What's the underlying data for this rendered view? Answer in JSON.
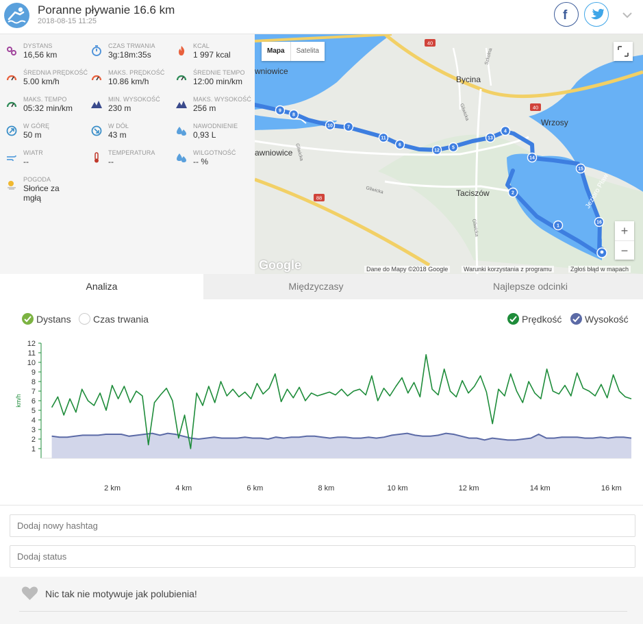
{
  "header": {
    "title": "Poranne pływanie 16.6 km",
    "date": "2018-08-15 11:25",
    "activity_icon": "swimmer-icon",
    "social": [
      "facebook-icon",
      "twitter-icon"
    ]
  },
  "stats": [
    {
      "label": "DYSTANS",
      "value": "16,56 km",
      "icon": "distance-icon",
      "color": "#a0449c"
    },
    {
      "label": "CZAS TRWANIA",
      "value": "3g:18m:35s",
      "icon": "stopwatch-icon",
      "color": "#4a90d9"
    },
    {
      "label": "KCAL",
      "value": "1 997 kcal",
      "icon": "flame-icon",
      "color": "#e8603c"
    },
    {
      "label": "ŚREDNIA PRĘDKOŚĆ",
      "value": "5.00 km/h",
      "icon": "speedometer-icon",
      "color": "#e8603c"
    },
    {
      "label": "MAKS. PRĘDKOŚĆ",
      "value": "10.86 km/h",
      "icon": "speedometer-icon",
      "color": "#e8603c"
    },
    {
      "label": "ŚREDNIE TEMPO",
      "value": "12:00 min/km",
      "icon": "pace-icon",
      "color": "#2e8b57"
    },
    {
      "label": "MAKS. TEMPO",
      "value": "05:32 min/km",
      "icon": "pace-icon",
      "color": "#2e8b57"
    },
    {
      "label": "MIN. WYSOKOŚĆ",
      "value": "230 m",
      "icon": "mountain-icon",
      "color": "#3a4a8c"
    },
    {
      "label": "MAKS. WYSOKOŚĆ",
      "value": "256 m",
      "icon": "mountain-icon",
      "color": "#3a4a8c"
    },
    {
      "label": "W GÓRĘ",
      "value": "50 m",
      "icon": "ascent-icon",
      "color": "#3a8ec8"
    },
    {
      "label": "W DÓŁ",
      "value": "43 m",
      "icon": "descent-icon",
      "color": "#3a8ec8"
    },
    {
      "label": "NAWODNIENIE",
      "value": "0,93 L",
      "icon": "drops-icon",
      "color": "#5aa0dc"
    },
    {
      "label": "WIATR",
      "value": "--",
      "icon": "wind-icon",
      "color": "#5aa0dc"
    },
    {
      "label": "TEMPERATURA",
      "value": "--",
      "icon": "thermometer-icon",
      "color": "#c0392b"
    },
    {
      "label": "WILGOTNOŚĆ",
      "value": "-- %",
      "icon": "humidity-icon",
      "color": "#5aa0dc"
    },
    {
      "label": "POGODA",
      "value": "Słońce za\nmgłą",
      "icon": "sun-fog-icon",
      "color": "#f0b830"
    }
  ],
  "map": {
    "btn_map": "Mapa",
    "btn_sat": "Satelita",
    "google": "Google",
    "attribution": "Dane do Mapy ©2018 Google",
    "terms": "Warunki korzystania z programu",
    "report": "Zgłoś błąd w mapach",
    "places": [
      {
        "name": "Bycina"
      },
      {
        "name": "Wrzosy"
      },
      {
        "name": "Taciszów"
      },
      {
        "name": "wniowice"
      },
      {
        "name": "awniowice"
      },
      {
        "name": "Gliwicka"
      },
      {
        "name": "Gliwicka"
      },
      {
        "name": "Gliwicka"
      },
      {
        "name": "Szkolna"
      },
      {
        "name": "Gliwicka"
      },
      {
        "name": "Jezioro Pław"
      }
    ],
    "roads": [
      "40",
      "40",
      "88"
    ],
    "markers": [
      "9",
      "8",
      "10",
      "7",
      "11",
      "6",
      "12",
      "5",
      "13",
      "4",
      "14",
      "15",
      "2",
      "16",
      "1"
    ]
  },
  "tabs": [
    "Analiza",
    "Międzyczasy",
    "Najlepsze odcinki"
  ],
  "legend": {
    "left": [
      {
        "label": "Dystans",
        "checked": true
      },
      {
        "label": "Czas trwania",
        "checked": false
      }
    ],
    "right": [
      {
        "label": "Prędkość",
        "color": "#1e8c3a",
        "checked": true
      },
      {
        "label": "Wysokość",
        "color": "#5b6aa6",
        "checked": true
      }
    ]
  },
  "chart_data": {
    "type": "line",
    "xlabel": "",
    "ylabel": "km/h",
    "xlim": [
      0,
      16.56
    ],
    "ylim": [
      0,
      12
    ],
    "xticks": [
      "2 km",
      "4 km",
      "6 km",
      "8 km",
      "10 km",
      "12 km",
      "14 km",
      "16 km"
    ],
    "yticks": [
      "1",
      "2",
      "3",
      "4",
      "5",
      "6",
      "7",
      "8",
      "9",
      "10",
      "11",
      "12"
    ],
    "series": [
      {
        "name": "Prędkość",
        "color": "#1e8c3a",
        "type": "line",
        "y": [
          5.3,
          6.4,
          4.5,
          6.2,
          4.8,
          7.2,
          6.0,
          5.5,
          6.8,
          5.0,
          7.6,
          6.2,
          7.5,
          5.8,
          7.0,
          6.5,
          1.4,
          5.8,
          6.6,
          7.3,
          6.0,
          2.1,
          4.5,
          1.0,
          6.8,
          5.5,
          7.5,
          5.8,
          8.0,
          6.5,
          7.2,
          6.4,
          6.9,
          6.2,
          7.8,
          6.7,
          7.3,
          8.8,
          5.9,
          7.2,
          6.3,
          7.4,
          6.0,
          6.8,
          6.5,
          6.7,
          6.9,
          6.6,
          7.2,
          6.5,
          7.0,
          7.2,
          6.6,
          8.6,
          6.0,
          7.3,
          6.5,
          7.5,
          8.4,
          6.8,
          7.9,
          6.4,
          10.8,
          7.2,
          6.6,
          9.3,
          7.0,
          6.4,
          8.1,
          6.8,
          7.5,
          8.6,
          6.9,
          3.6,
          7.2,
          6.5,
          8.8,
          7.0,
          5.8,
          8.0,
          6.8,
          6.2,
          9.3,
          7.0,
          6.7,
          7.6,
          6.5,
          8.9,
          7.3,
          7.0,
          6.5,
          7.7,
          6.3,
          8.7,
          7.0,
          6.4,
          6.2
        ]
      },
      {
        "name": "Wysokość",
        "color": "#5b6aa6",
        "type": "area",
        "y": [
          2.3,
          2.2,
          2.2,
          2.3,
          2.4,
          2.4,
          2.4,
          2.5,
          2.5,
          2.5,
          2.3,
          2.4,
          2.5,
          2.6,
          2.4,
          2.6,
          2.5,
          2.3,
          2.1,
          2.0,
          2.1,
          2.2,
          2.1,
          2.1,
          2.1,
          2.2,
          2.1,
          2.1,
          2.0,
          2.2,
          2.1,
          2.2,
          2.2,
          2.3,
          2.3,
          2.2,
          2.1,
          2.2,
          2.2,
          2.1,
          2.1,
          2.2,
          2.1,
          2.2,
          2.4,
          2.5,
          2.6,
          2.4,
          2.3,
          2.3,
          2.4,
          2.6,
          2.5,
          2.3,
          2.1,
          2.1,
          1.9,
          2.1,
          2.0,
          1.9,
          1.9,
          2.0,
          2.1,
          2.5,
          2.1,
          2.1,
          2.2,
          2.2,
          2.2,
          2.1,
          2.1,
          2.2,
          2.1,
          2.2,
          2.2,
          2.1
        ]
      }
    ]
  },
  "inputs": {
    "hashtag_placeholder": "Dodaj nowy hashtag",
    "status_placeholder": "Dodaj status"
  },
  "like": {
    "text": "Nic tak nie motywuje jak polubienia!",
    "icon": "heart-icon"
  }
}
